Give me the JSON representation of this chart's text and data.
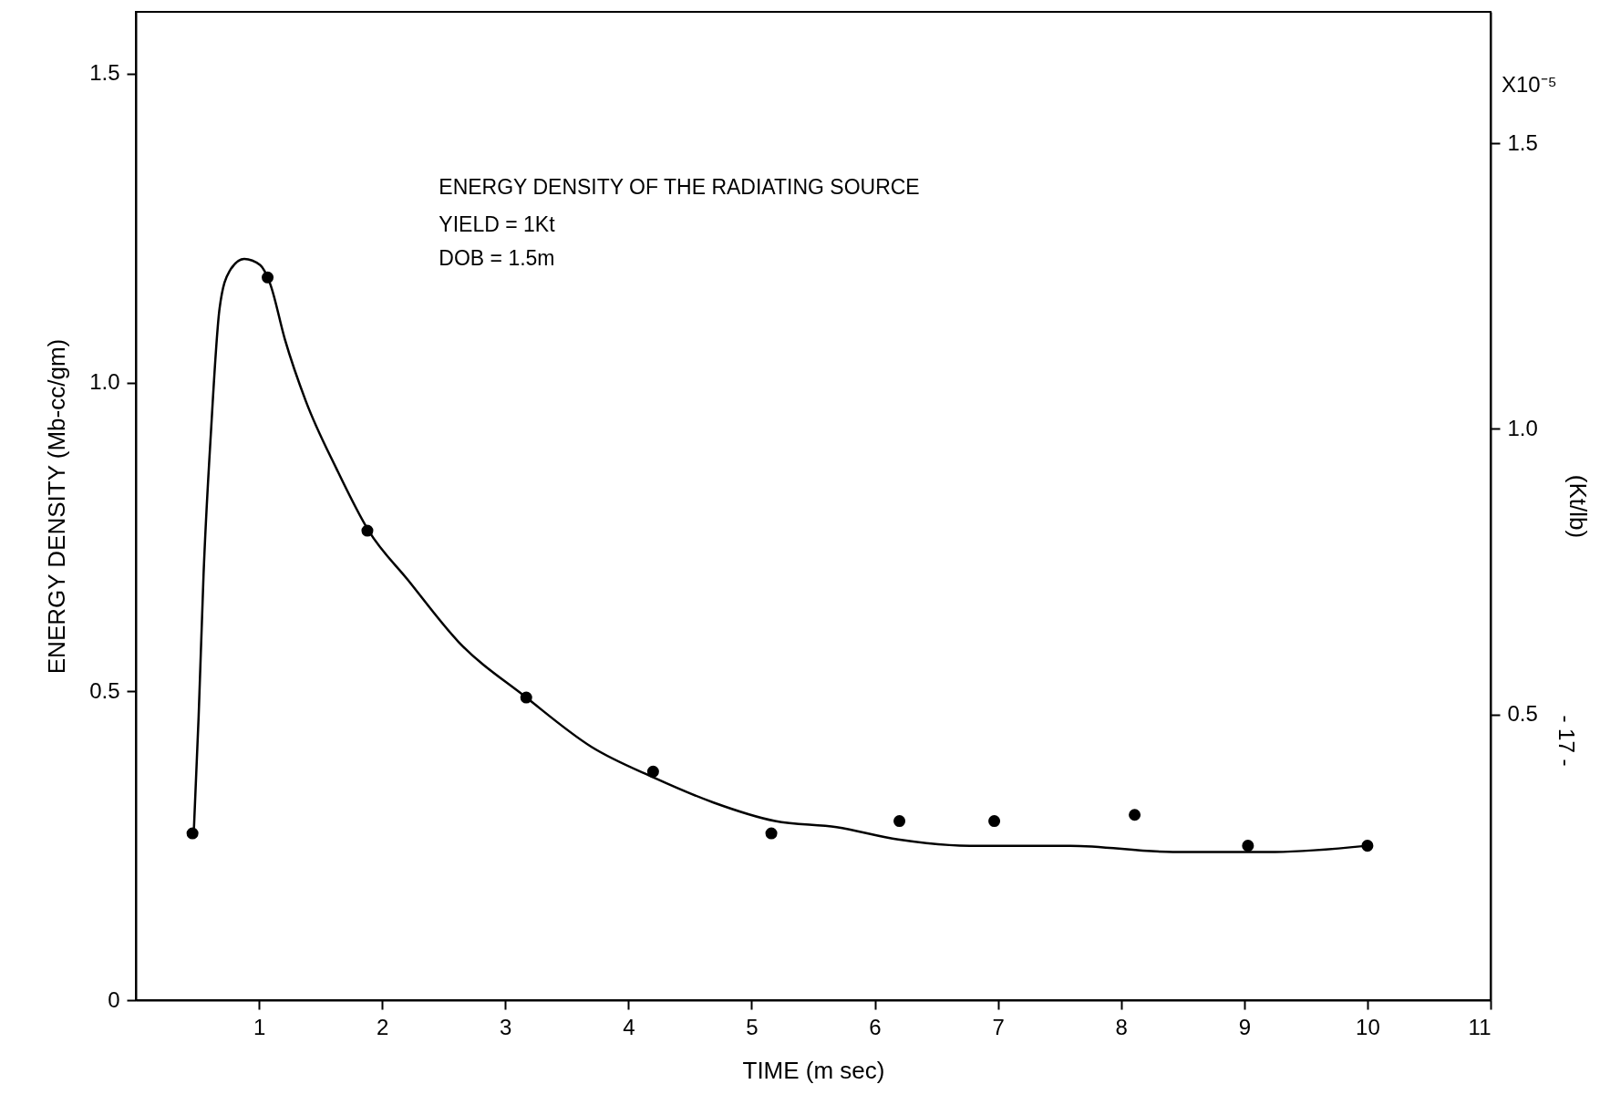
{
  "chart_data": {
    "type": "scatter",
    "title": "ENERGY DENSITY OF THE RADIATING SOURCE",
    "xlabel": "TIME (m sec)",
    "ylabel": "ENERGY DENSITY (Mb-cc/gm)",
    "y2label": "(Kt/lb)",
    "annotations": [
      "YIELD = 1Kt",
      "DOB = 1.5m",
      "X10⁻⁵",
      "- 17 -"
    ],
    "xlim": [
      0,
      11
    ],
    "xticks": [
      1,
      2,
      3,
      4,
      5,
      6,
      7,
      8,
      9,
      10,
      11
    ],
    "ylim": [
      0,
      1.6
    ],
    "yticks": [
      0,
      0.5,
      {
        "value": 1,
        "label": "1.0"
      },
      1.5
    ],
    "y2lim": [
      0,
      1.73
    ],
    "y2ticks": [
      0.5,
      {
        "value": 1,
        "label": "1.0"
      },
      1.5
    ],
    "grid": false,
    "series": [
      {
        "type": "line",
        "color": "#000000",
        "marker": "none",
        "line_style": "solid",
        "x": [
          0.47,
          0.51,
          0.55,
          0.61,
          0.68,
          0.76,
          0.88,
          1.01,
          1.09,
          1.21,
          1.38,
          1.63,
          1.89,
          2.21,
          2.62,
          3.17,
          3.7,
          4.21,
          4.69,
          5.19,
          5.69,
          6.19,
          6.77,
          7.59,
          8.42,
          9.25,
          10.0
        ],
        "values": [
          0.27,
          0.46,
          0.69,
          0.92,
          1.12,
          1.18,
          1.2,
          1.19,
          1.16,
          1.07,
          0.97,
          0.86,
          0.76,
          0.68,
          0.58,
          0.49,
          0.41,
          0.36,
          0.32,
          0.29,
          0.28,
          0.26,
          0.25,
          0.25,
          0.24,
          0.24,
          0.25
        ]
      },
      {
        "type": "scatter",
        "color": "#000000",
        "marker": "circle",
        "x": [
          0.46,
          1.07,
          1.88,
          3.17,
          4.2,
          5.16,
          6.2,
          6.97,
          8.11,
          9.03,
          10.0
        ],
        "values": [
          0.27,
          1.17,
          0.76,
          0.49,
          0.37,
          0.27,
          0.29,
          0.29,
          0.3,
          0.25,
          0.25
        ]
      }
    ]
  }
}
